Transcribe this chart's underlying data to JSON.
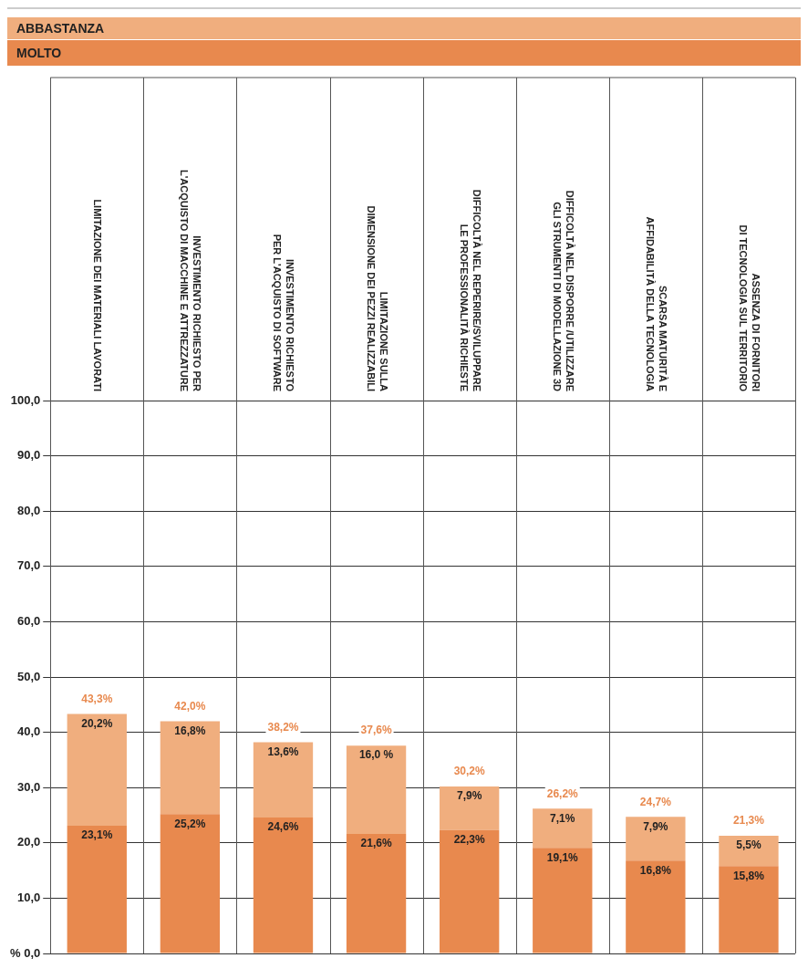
{
  "chart_data": {
    "type": "bar",
    "stacked": true,
    "legend": "top",
    "grid": true,
    "categories": [
      "LIMITAZIONE DEI MATERIALI LAVORATI",
      "INVESTIMENTO RICHIESTO PER\nL'ACQUISTO DI MACCHINE E ATTREZZATURE",
      "INVESTIMENTO RICHIESTO\nPER L'ACQUISTO DI SOFTWARE",
      "LIMITAZIONE SULLA\nDIMENSIONE DEI PEZZI REALIZZABILI",
      "DIFFICOLTÀ NEL REPERIRE/SVILUPPARE\nLE PROFESSIONALITÀ RICHIESTE",
      "DIFFICOLTÀ NEL DISPORRE /UTILIZZARE\nGLI STRUMENTI DI MODELLAZIONE 3D",
      "SCARSA MATURITÀ E\nAFFIDABILITÀ DELLA TECNOLOGIA",
      "ASSENZA DI FORNITORI\nDI TECNOLOGIA SUL TERRITORIO"
    ],
    "series": [
      {
        "name": "MOLTO",
        "color": "#e8894e",
        "values": [
          23.1,
          25.2,
          24.6,
          21.6,
          22.3,
          19.1,
          16.8,
          15.8
        ],
        "value_labels": [
          "23,1%",
          "25,2%",
          "24,6%",
          "21,6%",
          "22,3%",
          "19,1%",
          "16,8%",
          "15,8%"
        ]
      },
      {
        "name": "ABBASTANZA",
        "color": "#f0ae7e",
        "values": [
          20.2,
          16.8,
          13.6,
          16.0,
          7.9,
          7.1,
          7.9,
          5.5
        ],
        "value_labels": [
          "20,2%",
          "16,8%",
          "13,6%",
          "16,0 %",
          "7,9%",
          "7,1%",
          "7,9%",
          "5,5%"
        ]
      }
    ],
    "totals": [
      "43,3%",
      "42,0%",
      "38,2%",
      "37,6%",
      "30,2%",
      "26,2%",
      "24,7%",
      "21,3%"
    ],
    "ylim": [
      0,
      100
    ],
    "yticks": [
      {
        "value": 0,
        "label": "% 0,0"
      },
      {
        "value": 10,
        "label": "10,0"
      },
      {
        "value": 20,
        "label": "20,0"
      },
      {
        "value": 30,
        "label": "30,0"
      },
      {
        "value": 40,
        "label": "40,0"
      },
      {
        "value": 50,
        "label": "50,0"
      },
      {
        "value": 60,
        "label": "60,0"
      },
      {
        "value": 70,
        "label": "70,0"
      },
      {
        "value": 80,
        "label": "80,0"
      },
      {
        "value": 90,
        "label": "90,0"
      },
      {
        "value": 100,
        "label": "100,0"
      }
    ]
  }
}
